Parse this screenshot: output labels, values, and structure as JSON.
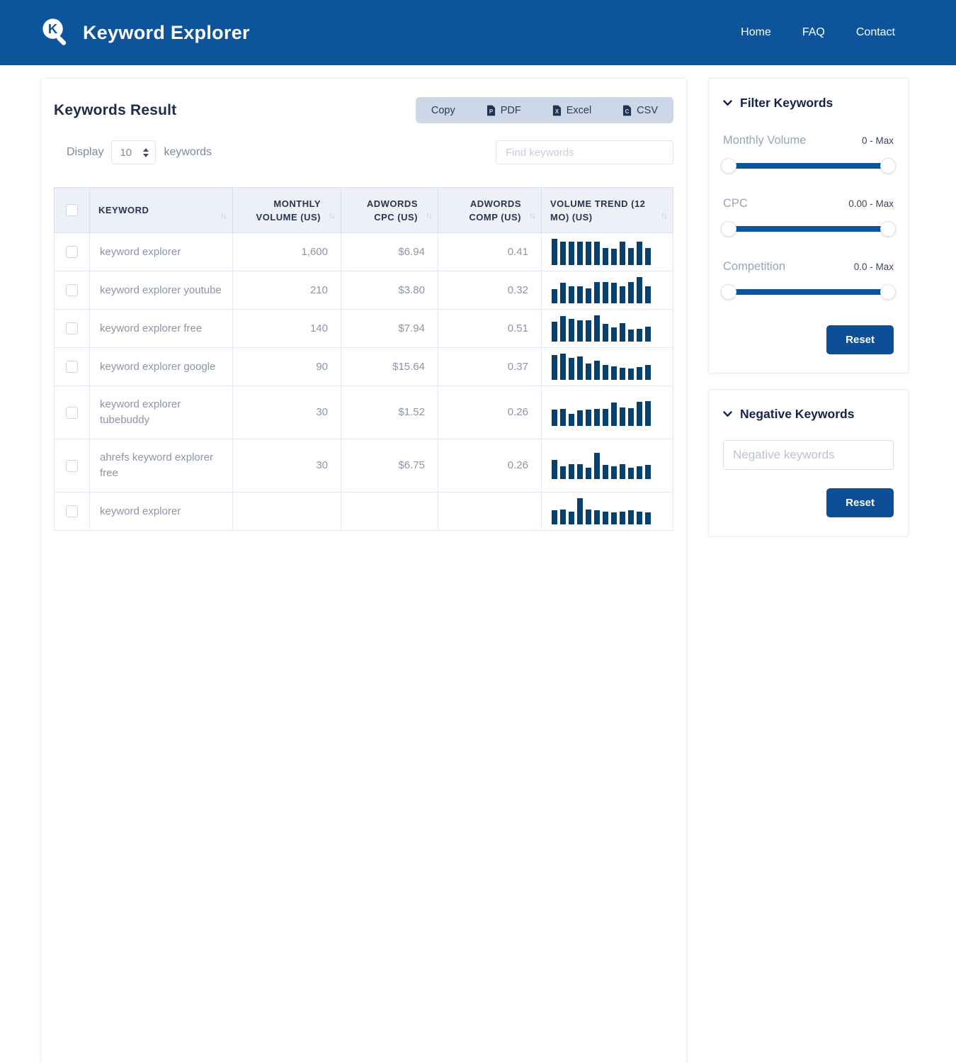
{
  "navbar": {
    "brand": "Keyword Explorer",
    "links": [
      {
        "label": "Home"
      },
      {
        "label": "FAQ"
      },
      {
        "label": "Contact"
      }
    ]
  },
  "results": {
    "title": "Keywords Result",
    "export_buttons": [
      {
        "label": "Copy",
        "icon": null,
        "icon_glyph": null
      },
      {
        "label": "PDF",
        "icon": "pdf-file-icon",
        "icon_glyph": "P"
      },
      {
        "label": "Excel",
        "icon": "excel-file-icon",
        "icon_glyph": "X"
      },
      {
        "label": "CSV",
        "icon": "csv-file-icon",
        "icon_glyph": "C"
      }
    ],
    "display": {
      "prefix": "Display",
      "value": "10",
      "suffix": "keywords"
    },
    "search_placeholder": "Find keywords",
    "table": {
      "columns": [
        {
          "label": "KEYWORD"
        },
        {
          "label": "MONTHLY VOLUME (US)"
        },
        {
          "label": "ADWORDS CPC (US)"
        },
        {
          "label": "ADWORDS COMP (US)"
        },
        {
          "label": "VOLUME TREND (12 MO) (US)"
        }
      ],
      "rows": [
        {
          "keyword": "keyword explorer",
          "monthly_volume": "1,600",
          "adwords_cpc": "$6.94",
          "adwords_comp": "0.41",
          "trend": [
            100,
            90,
            90,
            90,
            90,
            90,
            64,
            62,
            90,
            64,
            90,
            64
          ]
        },
        {
          "keyword": "keyword explorer youtube",
          "monthly_volume": "210",
          "adwords_cpc": "$3.80",
          "adwords_comp": "0.32",
          "trend": [
            55,
            78,
            66,
            66,
            58,
            80,
            80,
            78,
            66,
            82,
            100,
            64
          ]
        },
        {
          "keyword": "keyword explorer free",
          "monthly_volume": "140",
          "adwords_cpc": "$7.94",
          "adwords_comp": "0.51",
          "trend": [
            76,
            96,
            86,
            82,
            82,
            100,
            68,
            55,
            70,
            46,
            50,
            56
          ]
        },
        {
          "keyword": "keyword explorer google",
          "monthly_volume": "90",
          "adwords_cpc": "$15.64",
          "adwords_comp": "0.37",
          "trend": [
            95,
            100,
            84,
            88,
            62,
            74,
            56,
            52,
            46,
            42,
            50,
            56
          ]
        },
        {
          "keyword": "keyword explorer tubebuddy",
          "monthly_volume": "30",
          "adwords_cpc": "$1.52",
          "adwords_comp": "0.26",
          "trend": [
            62,
            64,
            45,
            58,
            60,
            64,
            64,
            88,
            70,
            66,
            90,
            92
          ]
        },
        {
          "keyword": "ahrefs keyword explorer free",
          "monthly_volume": "30",
          "adwords_cpc": "$6.75",
          "adwords_comp": "0.26",
          "trend": [
            72,
            48,
            55,
            55,
            42,
            100,
            52,
            48,
            55,
            42,
            46,
            52
          ]
        },
        {
          "keyword": "keyword explorer",
          "monthly_volume": "",
          "adwords_cpc": "",
          "adwords_comp": "",
          "trend": [
            55,
            58,
            50,
            100,
            58,
            54,
            50,
            46,
            50,
            55,
            50,
            45
          ]
        }
      ]
    }
  },
  "sidebar": {
    "filter_panel": {
      "title": "Filter Keywords",
      "filters": [
        {
          "label": "Monthly Volume",
          "range": "0 - Max"
        },
        {
          "label": "CPC",
          "range": "0.00 - Max"
        },
        {
          "label": "Competition",
          "range": "0.0 - Max"
        }
      ],
      "reset_label": "Reset"
    },
    "negative_panel": {
      "title": "Negative Keywords",
      "input_placeholder": "Negative keywords",
      "reset_label": "Reset"
    }
  },
  "icons": {
    "sort_arrows": "↑↓"
  },
  "colors": {
    "navbar": "#0e549b",
    "accent": "#0d4f96",
    "trend_bar": "#05406f",
    "export_bg": "#ccd7e8"
  }
}
